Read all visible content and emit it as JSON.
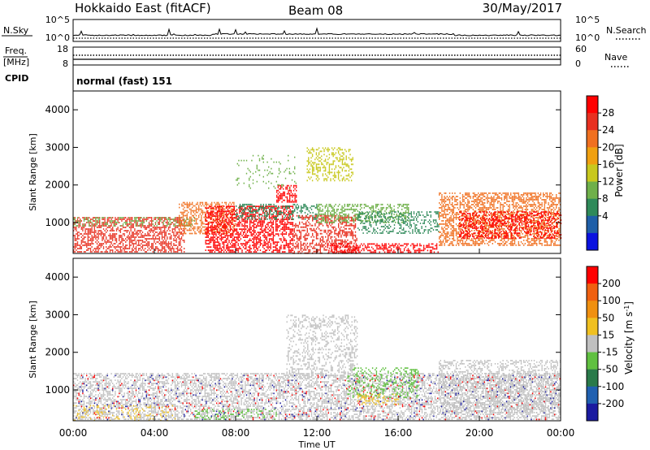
{
  "header": {
    "radar": "Hokkaido East (fitACF)",
    "beam": "Beam 08",
    "date": "30/May/2017"
  },
  "top_panel": {
    "left_label": "N.Sky",
    "right_label": "N.Search",
    "left_ticks": [
      "10^5",
      "10^0"
    ],
    "right_ticks": [
      "10^5",
      "10^0"
    ]
  },
  "freq_panel": {
    "label_top": "Freq.",
    "label_unit": "[MHz]",
    "left_ticks": [
      "18",
      "8"
    ],
    "right_ticks": [
      "60",
      "0"
    ],
    "right_label": "Nave",
    "cpid_label": "CPID"
  },
  "cpid_panel": {
    "text": "normal (fast) 151"
  },
  "power_panel": {
    "ylabel": "Slant Range [km]",
    "yticks": [
      "4000",
      "3000",
      "2000",
      "1000"
    ],
    "colorbar_title": "Power [dB]",
    "colorbar_ticks": [
      "28",
      "24",
      "20",
      "16",
      "12",
      "8",
      "4"
    ]
  },
  "velocity_panel": {
    "ylabel": "Slant Range [km]",
    "yticks": [
      "4000",
      "3000",
      "2000",
      "1000"
    ],
    "colorbar_title": "Velocity [m s",
    "colorbar_title_sup": "-1",
    "colorbar_title_end": "]",
    "colorbar_ticks": [
      "200",
      "100",
      "50",
      "15",
      "-15",
      "-50",
      "-100",
      "-200"
    ]
  },
  "xaxis": {
    "ticks": [
      "00:00",
      "04:00",
      "08:00",
      "12:00",
      "16:00",
      "20:00",
      "00:00"
    ],
    "label": "Time UT"
  },
  "chart_data": {
    "type": "heatmap",
    "x_range_hours": [
      0,
      24
    ],
    "y_range_km": [
      180,
      4500
    ],
    "power_colorscale": [
      "#0a12e0",
      "#1f5fa8",
      "#2f8a5a",
      "#6fb04a",
      "#c8c81e",
      "#f0a010",
      "#f07020",
      "#e83020",
      "#ff0000"
    ],
    "velocity_colorscale": [
      "#1a1aa0",
      "#2060b0",
      "#2a7a4a",
      "#60c040",
      "#c0c0c0",
      "#f0c020",
      "#f09010",
      "#f06010",
      "#ff0000"
    ],
    "power_regions": [
      {
        "t0": 0.0,
        "t1": 5.5,
        "r0": 200,
        "r1": 1150,
        "color": "#e83020",
        "density": 0.55
      },
      {
        "t0": 0.0,
        "t1": 6.0,
        "r0": 900,
        "r1": 1150,
        "color": "#6fb04a",
        "density": 0.35
      },
      {
        "t0": 5.2,
        "t1": 8.0,
        "r0": 700,
        "r1": 1550,
        "color": "#f07020",
        "density": 0.45
      },
      {
        "t0": 6.5,
        "t1": 10.8,
        "r0": 200,
        "r1": 1450,
        "color": "#ff0000",
        "density": 0.6
      },
      {
        "t0": 8.0,
        "t1": 12.0,
        "r0": 1100,
        "r1": 1500,
        "color": "#2f8a5a",
        "density": 0.35
      },
      {
        "t0": 10.8,
        "t1": 14.0,
        "r0": 200,
        "r1": 1200,
        "color": "#e83020",
        "density": 0.45
      },
      {
        "t0": 12.0,
        "t1": 16.5,
        "r0": 1000,
        "r1": 1500,
        "color": "#6fb04a",
        "density": 0.45
      },
      {
        "t0": 14.0,
        "t1": 18.0,
        "r0": 700,
        "r1": 1300,
        "color": "#2f8a5a",
        "density": 0.35
      },
      {
        "t0": 12.5,
        "t1": 18.0,
        "r0": 200,
        "r1": 450,
        "color": "#ff0000",
        "density": 0.5
      },
      {
        "t0": 18.0,
        "t1": 24.0,
        "r0": 400,
        "r1": 1800,
        "color": "#f07020",
        "density": 0.55
      },
      {
        "t0": 19.0,
        "t1": 24.0,
        "r0": 600,
        "r1": 1300,
        "color": "#ff0000",
        "density": 0.45
      },
      {
        "t0": 10.0,
        "t1": 11.0,
        "r0": 1550,
        "r1": 2000,
        "color": "#ff0000",
        "density": 0.55
      },
      {
        "t0": 11.5,
        "t1": 13.8,
        "r0": 2100,
        "r1": 3000,
        "color": "#c8c81e",
        "density": 0.35
      },
      {
        "t0": 8.0,
        "t1": 11.0,
        "r0": 1900,
        "r1": 2800,
        "color": "#6fb04a",
        "density": 0.1
      }
    ],
    "velocity_regions": [
      {
        "t0": 0.0,
        "t1": 24.0,
        "r0": 200,
        "r1": 1450,
        "color": "#c0c0c0",
        "density": 0.5
      },
      {
        "t0": 0.0,
        "t1": 5.0,
        "r0": 200,
        "r1": 600,
        "color": "#f0c020",
        "density": 0.15
      },
      {
        "t0": 6.0,
        "t1": 10.0,
        "r0": 200,
        "r1": 500,
        "color": "#60c040",
        "density": 0.2
      },
      {
        "t0": 13.5,
        "t1": 17.0,
        "r0": 800,
        "r1": 1600,
        "color": "#60c040",
        "density": 0.25
      },
      {
        "t0": 14.0,
        "t1": 16.0,
        "r0": 600,
        "r1": 900,
        "color": "#f0c020",
        "density": 0.3
      },
      {
        "t0": 10.5,
        "t1": 14.0,
        "r0": 1400,
        "r1": 3000,
        "color": "#c0c0c0",
        "density": 0.3
      },
      {
        "t0": 18.0,
        "t1": 24.0,
        "r0": 400,
        "r1": 1800,
        "color": "#c0c0c0",
        "density": 0.4
      },
      {
        "t0": 0.0,
        "t1": 24.0,
        "r0": 200,
        "r1": 1400,
        "color": "#1a1aa0",
        "density": 0.03
      },
      {
        "t0": 0.0,
        "t1": 24.0,
        "r0": 200,
        "r1": 1400,
        "color": "#ff0000",
        "density": 0.03
      }
    ]
  }
}
